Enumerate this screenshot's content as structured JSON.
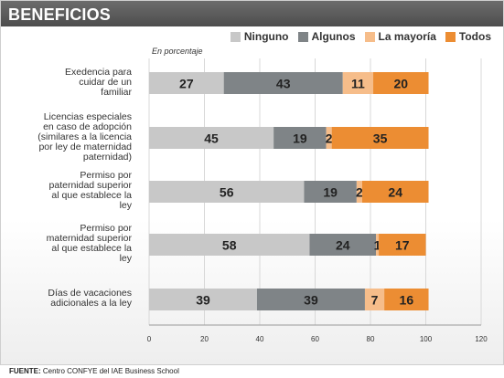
{
  "header": {
    "title": "BENEFICIOS"
  },
  "subtitle": "En porcentaje",
  "source": {
    "label": "FUENTE:",
    "text": "Centro CONFYE del IAE Business School"
  },
  "chart_data": {
    "type": "bar",
    "orientation": "horizontal",
    "stacked": true,
    "categories": [
      "Exedencia para cuidar de un familiar",
      "Licencias especiales en caso de adopción (similares a la licencia por ley de maternidad paternidad)",
      "Permiso por paternidad superior al que establece la ley",
      "Permiso por maternidad superior al que establece la ley",
      "Días de vacaciones adicionales a la ley"
    ],
    "series": [
      {
        "name": "Ninguno",
        "color": "#c8c8c8",
        "values": [
          27,
          45,
          56,
          58,
          39
        ]
      },
      {
        "name": "Algunos",
        "color": "#7f8487",
        "values": [
          43,
          19,
          19,
          24,
          39
        ]
      },
      {
        "name": "La mayoría",
        "color": "#f6bd8a",
        "values": [
          11,
          2,
          2,
          1,
          7
        ]
      },
      {
        "name": "Todos",
        "color": "#ec8d33",
        "values": [
          20,
          35,
          24,
          17,
          16
        ]
      }
    ],
    "xlim": [
      0,
      120
    ],
    "xticks": [
      0,
      20,
      40,
      60,
      80,
      100,
      120
    ],
    "legend": "top-right",
    "grid": true
  }
}
